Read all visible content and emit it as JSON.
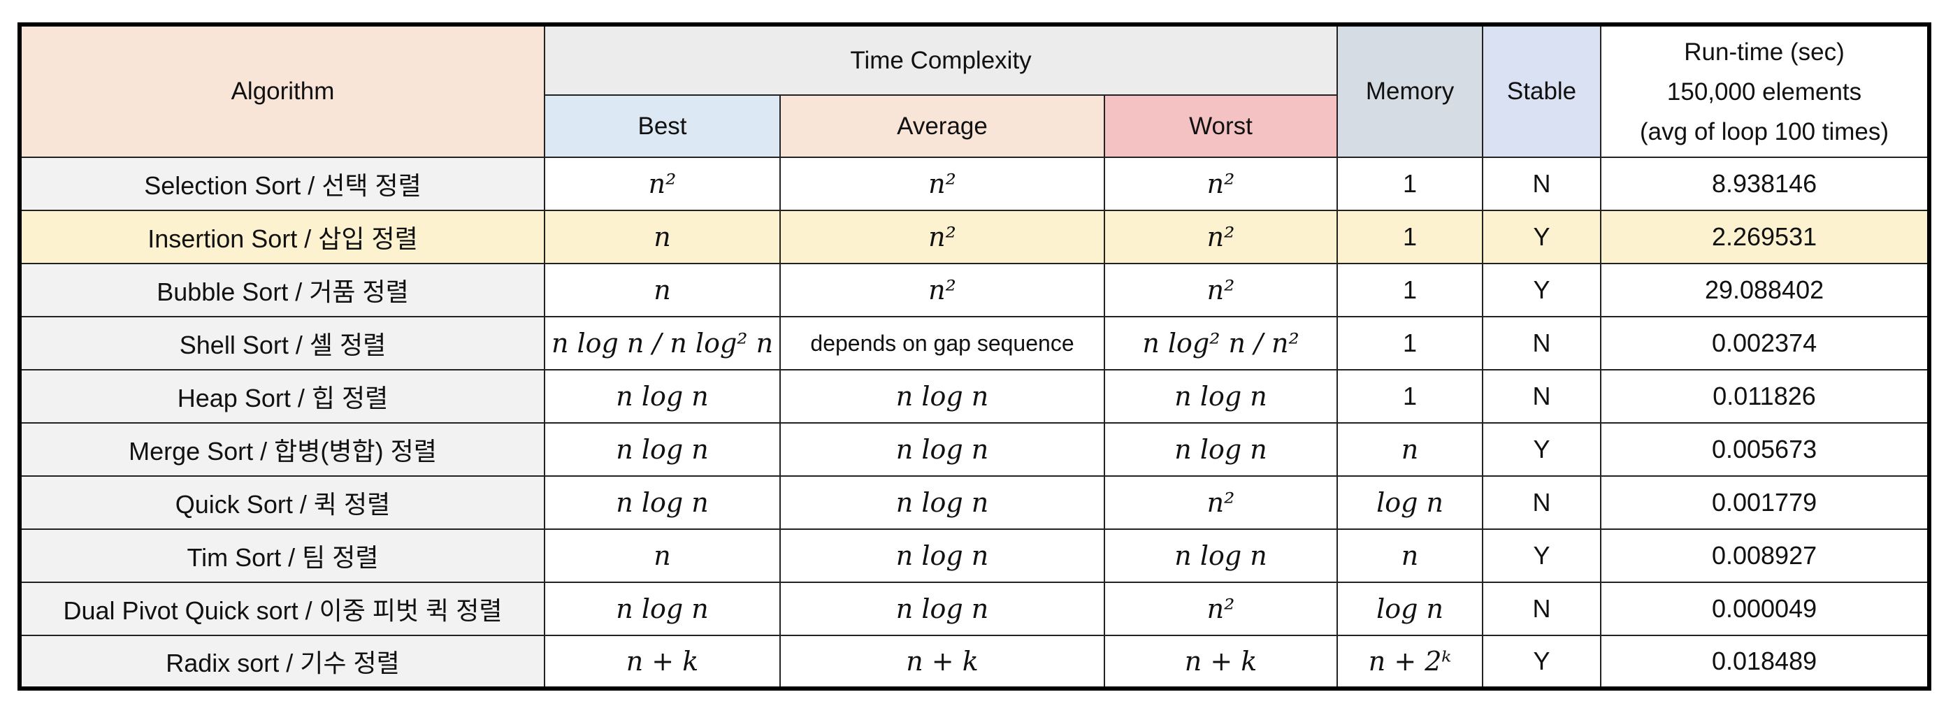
{
  "header": {
    "algorithm": "Algorithm",
    "time_complexity": "Time Complexity",
    "best": "Best",
    "average": "Average",
    "worst": "Worst",
    "memory": "Memory",
    "stable": "Stable",
    "runtime": [
      "Run-time (sec)",
      "150,000 elements",
      "(avg of loop 100 times)"
    ]
  },
  "table": {
    "rows": [
      [
        "Selection Sort / 선택 정렬",
        "n²",
        "n²",
        "n²",
        "1",
        "N",
        "8.938146"
      ],
      [
        "Insertion Sort / 삽입 정렬",
        "n",
        "n²",
        "n²",
        "1",
        "Y",
        "2.269531"
      ],
      [
        "Bubble Sort / 거품 정렬",
        "n",
        "n²",
        "n²",
        "1",
        "Y",
        "29.088402"
      ],
      [
        "Shell Sort / 셸 정렬",
        "n log n / n log² n",
        "depends on gap sequence",
        "n log² n / n²",
        "1",
        "N",
        "0.002374"
      ],
      [
        "Heap Sort / 힙 정렬",
        "n log n",
        "n log n",
        "n log n",
        "1",
        "N",
        "0.011826"
      ],
      [
        "Merge Sort / 합병(병합) 정렬",
        "n log n",
        "n log n",
        "n log n",
        "n",
        "Y",
        "0.005673"
      ],
      [
        "Quick Sort / 퀵 정렬",
        "n log n",
        "n log n",
        "n²",
        "log n",
        "N",
        "0.001779"
      ],
      [
        "Tim Sort / 팀 정렬",
        "n",
        "n log n",
        "n log n",
        "n",
        "Y",
        "0.008927"
      ],
      [
        "Dual Pivot Quick sort / 이중 피벗 퀵 정렬",
        "n log n",
        "n log n",
        "n²",
        "log n",
        "N",
        "0.000049"
      ],
      [
        "Radix sort / 기수 정렬",
        "n + k",
        "n + k",
        "n + k",
        "n + 2ᵏ",
        "Y",
        "0.018489"
      ]
    ]
  }
}
